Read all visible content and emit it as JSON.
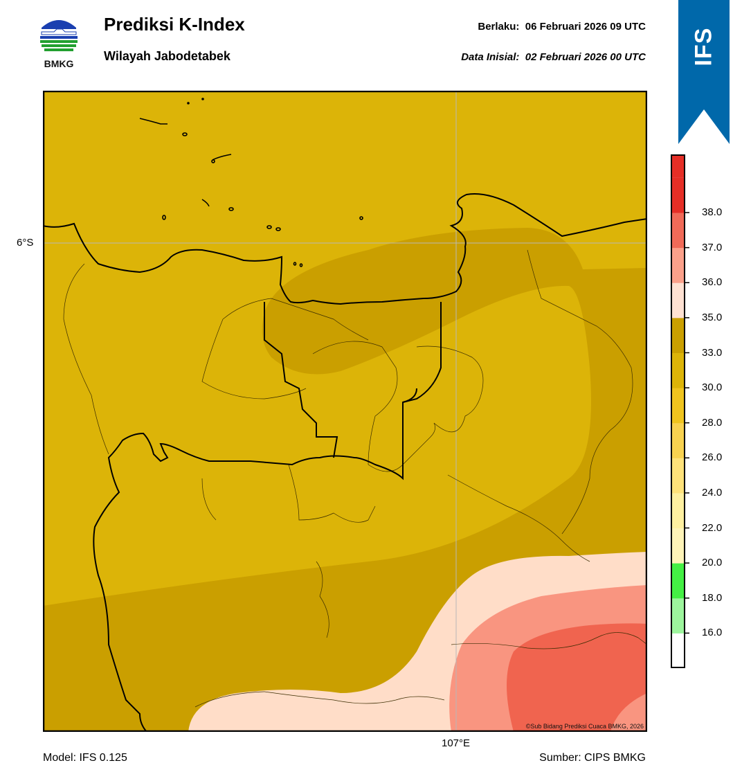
{
  "header": {
    "logo_text": "BMKG",
    "title": "Prediksi K-Index",
    "subtitle": "Wilayah Jabodetabek",
    "valid_label": "Berlaku:",
    "valid_value": "06 Februari 2026 09 UTC",
    "init_label": "Data Inisial:",
    "init_value": "02 Februari 2026 00 UTC",
    "model_badge": "IFS"
  },
  "map": {
    "lat_label": "6°S",
    "lon_label": "107°E",
    "copyright": "©Sub Bidang Prediksi Cuaca BMKG, 2026"
  },
  "footer": {
    "model": "Model: IFS 0.125",
    "source": "Sumber: CIPS BMKG"
  },
  "colorbar": {
    "ticks": [
      "38.0",
      "37.0",
      "36.0",
      "35.0",
      "33.0",
      "30.0",
      "28.0",
      "26.0",
      "24.0",
      "22.0",
      "20.0",
      "18.0",
      "16.0"
    ],
    "bands_bottom_to_top": [
      "#ffffff",
      "#9df59d",
      "#44ef44",
      "#fff4b8",
      "#fff0a0",
      "#ffe27a",
      "#f8d250",
      "#efc41e",
      "#dcb408",
      "#ca9f00",
      "#ffe1d2",
      "#fba08a",
      "#f06a58",
      "#e52e26"
    ]
  },
  "colors": {
    "ifs_banner": "#0068aa",
    "k_26_28": "#dcb408",
    "k_30_33": "#ca9f00",
    "k_35_36": "#ffddc8",
    "k_36_37": "#f99580",
    "k_37_38": "#f0644f"
  }
}
